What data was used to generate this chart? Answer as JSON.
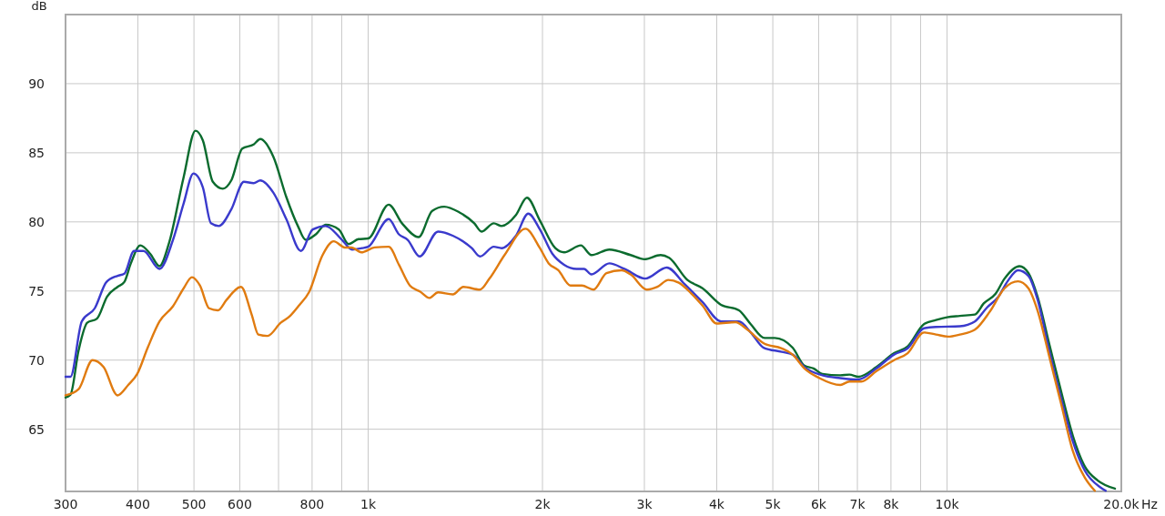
{
  "chart_data": {
    "type": "line",
    "ylabel": "dB",
    "xlabel": "Hz",
    "log": "x",
    "grid": true,
    "line_style": "solid",
    "marker": "none",
    "xlim": [
      300,
      20000
    ],
    "ylim": [
      60.5,
      95
    ],
    "xticks": [
      300,
      400,
      500,
      600,
      {
        "value": 700,
        "label": null
      },
      800,
      {
        "value": 900,
        "label": null
      },
      {
        "value": 1000,
        "label": "1k"
      },
      {
        "value": 2000,
        "label": "2k"
      },
      {
        "value": 3000,
        "label": "3k"
      },
      {
        "value": 4000,
        "label": "4k"
      },
      {
        "value": 5000,
        "label": "5k"
      },
      {
        "value": 6000,
        "label": "6k"
      },
      {
        "value": 7000,
        "label": "7k"
      },
      {
        "value": 8000,
        "label": "8k"
      },
      {
        "value": 9000,
        "label": null
      },
      {
        "value": 10000,
        "label": "10k"
      },
      {
        "value": 20000,
        "label": "20.0k"
      }
    ],
    "yticks": [
      65,
      70,
      75,
      80,
      85,
      90
    ],
    "series": [
      {
        "color": "#0b6b2e",
        "x": [
          300,
          306,
          316,
          327,
          340,
          354,
          369,
          379,
          389,
          404,
          420,
          436,
          453,
          480,
          503,
          518,
          539,
          561,
          580,
          606,
          634,
          651,
          686,
          722,
          756,
          780,
          812,
          844,
          890,
          925,
          962,
          1000,
          1085,
          1144,
          1222,
          1290,
          1353,
          1436,
          1525,
          1570,
          1648,
          1700,
          1800,
          1880,
          1980,
          2105,
          2180,
          2330,
          2430,
          2610,
          2840,
          3000,
          3200,
          3310,
          3560,
          3780,
          4070,
          4370,
          4580,
          4840,
          5040,
          5410,
          5670,
          5880,
          6090,
          6540,
          6780,
          7030,
          7550,
          8100,
          8550,
          9120,
          9570,
          10000,
          10520,
          11170,
          11570,
          12130,
          12570,
          13340,
          13820,
          14330,
          15030,
          15770,
          16500,
          17300,
          18200,
          19500
        ],
        "values": [
          67.3,
          67.5,
          70.7,
          72.7,
          73.0,
          74.6,
          75.3,
          75.65,
          77.0,
          78.3,
          77.7,
          76.8,
          78.5,
          83.25,
          86.6,
          85.9,
          82.9,
          82.4,
          83.0,
          85.3,
          85.6,
          86.0,
          84.7,
          81.8,
          79.7,
          78.7,
          79.1,
          79.8,
          79.45,
          78.4,
          78.75,
          78.8,
          81.25,
          79.9,
          78.9,
          80.8,
          81.1,
          80.7,
          79.9,
          79.3,
          79.9,
          79.7,
          80.5,
          81.75,
          80.1,
          78.1,
          77.8,
          78.3,
          77.6,
          78.0,
          77.6,
          77.3,
          77.6,
          77.4,
          75.8,
          75.2,
          74.0,
          73.6,
          72.6,
          71.6,
          71.6,
          70.9,
          69.6,
          69.4,
          69.0,
          68.9,
          68.95,
          68.8,
          69.5,
          70.5,
          71.0,
          72.6,
          72.9,
          73.1,
          73.2,
          73.3,
          74.1,
          74.8,
          75.9,
          76.8,
          76.3,
          74.6,
          71.1,
          67.6,
          64.5,
          62.3,
          61.3,
          60.7
        ]
      },
      {
        "color": "#3a3acc",
        "x": [
          300,
          306,
          320,
          337,
          353,
          369,
          379,
          394,
          409,
          436,
          460,
          480,
          499,
          518,
          535,
          552,
          580,
          610,
          634,
          651,
          686,
          722,
          765,
          802,
          844,
          901,
          938,
          976,
          1000,
          1085,
          1130,
          1170,
          1227,
          1320,
          1400,
          1510,
          1560,
          1648,
          1700,
          1800,
          1890,
          1980,
          2080,
          2180,
          2290,
          2360,
          2430,
          2610,
          2770,
          3010,
          3280,
          3520,
          3780,
          4070,
          4370,
          4580,
          4820,
          5180,
          5410,
          5670,
          6090,
          6540,
          7030,
          7550,
          8100,
          8550,
          9120,
          9570,
          10520,
          11170,
          11720,
          12270,
          12720,
          13260,
          13820,
          14330,
          15030,
          15770,
          16500,
          17300,
          18400,
          18800
        ],
        "values": [
          68.8,
          68.8,
          72.8,
          73.75,
          75.65,
          76.1,
          76.25,
          77.9,
          77.9,
          76.6,
          78.7,
          81.35,
          83.5,
          82.5,
          79.9,
          79.7,
          80.9,
          82.9,
          82.8,
          83.0,
          82.1,
          80.2,
          77.9,
          79.45,
          79.7,
          78.7,
          78.0,
          78.1,
          78.2,
          80.2,
          79.1,
          78.7,
          77.5,
          79.3,
          79.0,
          78.1,
          77.5,
          78.2,
          78.1,
          79.0,
          80.6,
          79.45,
          77.7,
          76.9,
          76.6,
          76.6,
          76.2,
          77.0,
          76.6,
          75.9,
          76.7,
          75.5,
          74.2,
          72.8,
          72.8,
          72.0,
          70.9,
          70.6,
          70.4,
          69.5,
          68.9,
          68.7,
          68.6,
          69.4,
          70.4,
          70.85,
          72.3,
          72.4,
          72.45,
          72.8,
          73.8,
          74.6,
          75.7,
          76.5,
          76.1,
          74.4,
          70.6,
          67.1,
          64.1,
          62.0,
          60.8,
          60.55
        ]
      },
      {
        "color": "#e07b10",
        "x": [
          300,
          316,
          334,
          349,
          369,
          385,
          399,
          416,
          436,
          460,
          480,
          496,
          512,
          531,
          550,
          569,
          603,
          629,
          646,
          670,
          706,
          733,
          761,
          790,
          833,
          872,
          911,
          935,
          973,
          1026,
          1085,
          1130,
          1180,
          1230,
          1275,
          1320,
          1400,
          1460,
          1560,
          1620,
          1720,
          1870,
          1980,
          2050,
          2130,
          2235,
          2340,
          2450,
          2580,
          2740,
          2840,
          3030,
          3160,
          3300,
          3440,
          3610,
          3780,
          4000,
          4310,
          4520,
          4830,
          5180,
          5410,
          5670,
          6020,
          6540,
          6780,
          7110,
          7550,
          8100,
          8550,
          9120,
          9570,
          10040,
          10520,
          11170,
          11850,
          12570,
          13260,
          13820,
          14330,
          15030,
          15770,
          16500,
          17300,
          18000
        ],
        "values": [
          67.45,
          67.9,
          70.0,
          69.5,
          67.45,
          68.2,
          69.0,
          70.9,
          72.8,
          73.9,
          75.2,
          76.0,
          75.4,
          73.75,
          73.6,
          74.35,
          75.3,
          73.3,
          71.85,
          71.75,
          72.7,
          73.2,
          74.0,
          74.9,
          77.55,
          78.6,
          78.15,
          78.15,
          77.8,
          78.15,
          78.2,
          76.9,
          75.4,
          74.95,
          74.5,
          74.9,
          74.75,
          75.3,
          75.1,
          75.9,
          77.6,
          79.5,
          78.1,
          77.0,
          76.5,
          75.4,
          75.4,
          75.1,
          76.3,
          76.5,
          76.2,
          75.1,
          75.3,
          75.8,
          75.6,
          74.85,
          73.95,
          72.65,
          72.75,
          72.2,
          71.2,
          70.85,
          70.4,
          69.4,
          68.7,
          68.2,
          68.45,
          68.45,
          69.2,
          70.0,
          70.5,
          72.0,
          71.85,
          71.7,
          71.85,
          72.2,
          73.5,
          75.2,
          75.7,
          75.2,
          73.6,
          70.2,
          66.7,
          63.4,
          61.5,
          60.55
        ]
      }
    ]
  }
}
